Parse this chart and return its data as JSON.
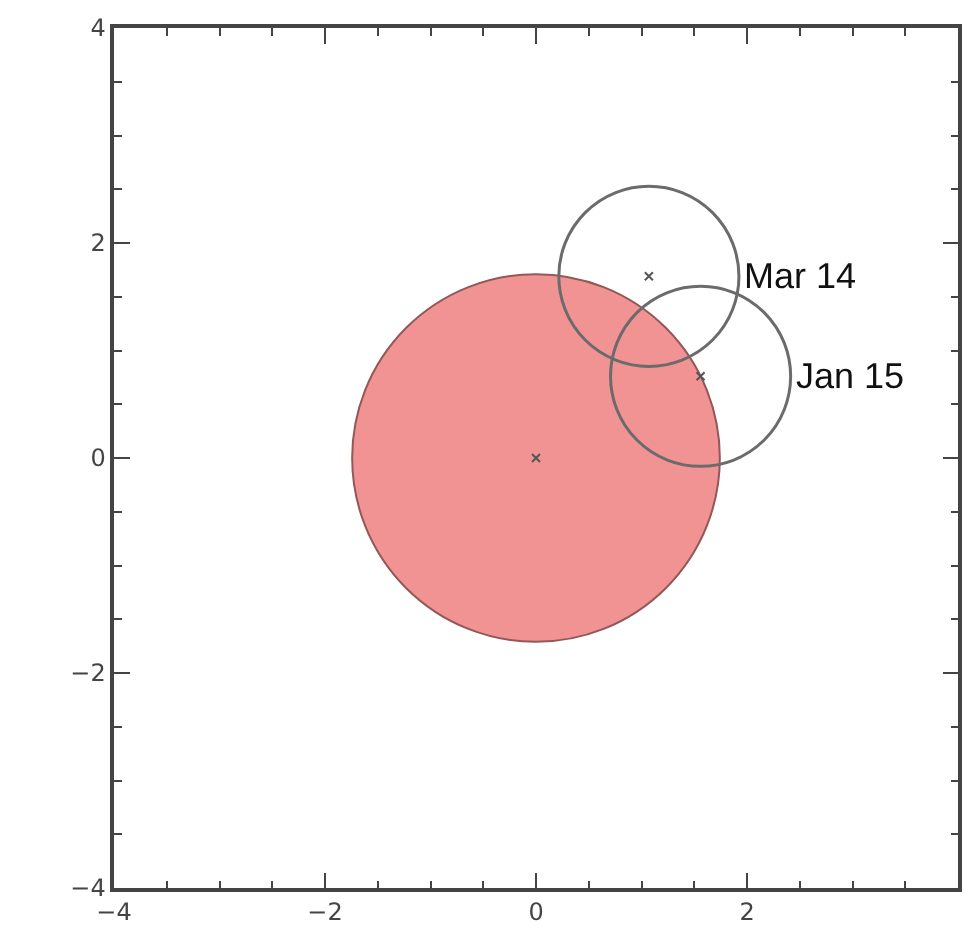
{
  "chart_data": {
    "type": "bubble",
    "xlim": [
      -4,
      4
    ],
    "ylim": [
      -4,
      4
    ],
    "xticks": [
      -4,
      {
        "value": -3.5,
        "label": null
      },
      {
        "value": -3,
        "label": null
      },
      {
        "value": -2.5,
        "label": null
      },
      -2,
      {
        "value": -1.5,
        "label": null
      },
      {
        "value": -1,
        "label": null
      },
      {
        "value": -0.5,
        "label": null
      },
      0,
      {
        "value": 0.5,
        "label": null
      },
      {
        "value": 1,
        "label": null
      },
      {
        "value": 1.5,
        "label": null
      },
      2,
      {
        "value": 2.5,
        "label": null
      },
      {
        "value": 3,
        "label": null
      },
      {
        "value": 3.5,
        "label": null
      }
    ],
    "yticks": [
      -4,
      {
        "value": -3.5,
        "label": null
      },
      {
        "value": -3,
        "label": null
      },
      {
        "value": -2.5,
        "label": null
      },
      -2,
      {
        "value": -1.5,
        "label": null
      },
      {
        "value": -1,
        "label": null
      },
      {
        "value": -0.5,
        "label": null
      },
      0,
      {
        "value": 0.5,
        "label": null
      },
      {
        "value": 1,
        "label": null
      },
      {
        "value": 1.5,
        "label": null
      },
      2,
      {
        "value": 2.5,
        "label": null
      },
      {
        "value": 3,
        "label": null
      },
      {
        "value": 3.5,
        "label": null
      },
      4
    ],
    "annotations": [
      {
        "text": "Mar 14",
        "x": 1.07,
        "y": 1.69
      },
      {
        "text": "Jan 15",
        "x": 1.56,
        "y": 0.76
      }
    ],
    "series": [
      {
        "marker": "circle",
        "color": "#f29393",
        "x": [
          0
        ],
        "values": [
          0
        ],
        "sizes": [
          1
        ]
      },
      {
        "color": "#6b6b6b",
        "x": [
          1.07,
          1.56
        ],
        "values": [
          1.69,
          0.76
        ],
        "sizes": [
          0.24,
          0.24
        ]
      },
      {
        "type": "scatter",
        "marker": "cross",
        "color": "#555555",
        "x": [
          0,
          1.07,
          1.56
        ],
        "values": [
          0,
          1.69,
          0.76
        ]
      }
    ]
  }
}
